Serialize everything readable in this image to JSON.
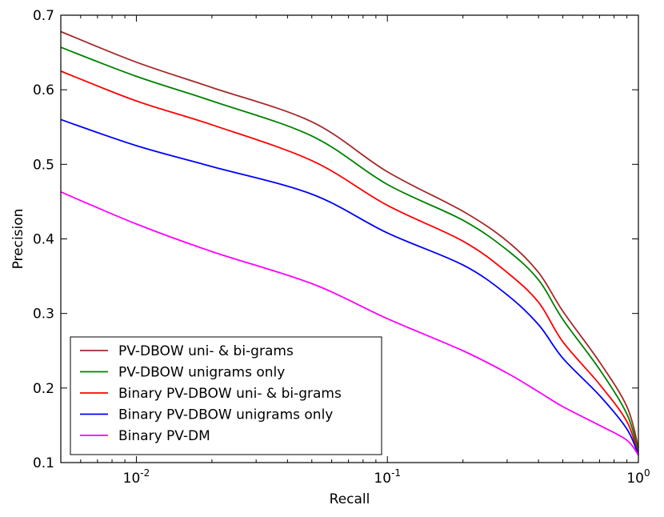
{
  "chart_data": {
    "type": "line",
    "title": "",
    "xlabel": "Recall",
    "ylabel": "Precision",
    "xscale": "log",
    "xlim": [
      0.005,
      1.0
    ],
    "ylim": [
      0.1,
      0.7
    ],
    "grid": false,
    "legend_position": "bottom-left",
    "x_ticks": [
      {
        "value": 0.01,
        "base": "10",
        "exp": "-2"
      },
      {
        "value": 0.1,
        "base": "10",
        "exp": "-1"
      },
      {
        "value": 1.0,
        "base": "10",
        "exp": "0"
      }
    ],
    "y_ticks": [
      {
        "value": 0.1,
        "label": "0.1"
      },
      {
        "value": 0.2,
        "label": "0.2"
      },
      {
        "value": 0.3,
        "label": "0.3"
      },
      {
        "value": 0.4,
        "label": "0.4"
      },
      {
        "value": 0.5,
        "label": "0.5"
      },
      {
        "value": 0.6,
        "label": "0.6"
      },
      {
        "value": 0.7,
        "label": "0.7"
      }
    ],
    "series": [
      {
        "name": "PV-DBOW uni- & bi-grams",
        "color": "#a52a2a",
        "points": [
          [
            0.005,
            0.678
          ],
          [
            0.01,
            0.637
          ],
          [
            0.02,
            0.603
          ],
          [
            0.05,
            0.557
          ],
          [
            0.1,
            0.49
          ],
          [
            0.2,
            0.437
          ],
          [
            0.3,
            0.397
          ],
          [
            0.4,
            0.355
          ],
          [
            0.5,
            0.303
          ],
          [
            0.7,
            0.235
          ],
          [
            0.9,
            0.175
          ],
          [
            1.0,
            0.12
          ]
        ]
      },
      {
        "name": "PV-DBOW unigrams only",
        "color": "#008000",
        "points": [
          [
            0.005,
            0.657
          ],
          [
            0.01,
            0.618
          ],
          [
            0.02,
            0.585
          ],
          [
            0.05,
            0.538
          ],
          [
            0.1,
            0.473
          ],
          [
            0.2,
            0.425
          ],
          [
            0.3,
            0.385
          ],
          [
            0.4,
            0.345
          ],
          [
            0.5,
            0.292
          ],
          [
            0.7,
            0.225
          ],
          [
            0.9,
            0.165
          ],
          [
            1.0,
            0.115
          ]
        ]
      },
      {
        "name": "Binary PV-DBOW uni- & bi-grams",
        "color": "#ff0000",
        "points": [
          [
            0.005,
            0.625
          ],
          [
            0.01,
            0.585
          ],
          [
            0.02,
            0.553
          ],
          [
            0.05,
            0.505
          ],
          [
            0.1,
            0.445
          ],
          [
            0.2,
            0.397
          ],
          [
            0.3,
            0.355
          ],
          [
            0.4,
            0.315
          ],
          [
            0.5,
            0.262
          ],
          [
            0.7,
            0.205
          ],
          [
            0.9,
            0.155
          ],
          [
            1.0,
            0.11
          ]
        ]
      },
      {
        "name": "Binary PV-DBOW unigrams only",
        "color": "#0000ff",
        "points": [
          [
            0.005,
            0.56
          ],
          [
            0.01,
            0.525
          ],
          [
            0.02,
            0.497
          ],
          [
            0.05,
            0.46
          ],
          [
            0.1,
            0.408
          ],
          [
            0.2,
            0.365
          ],
          [
            0.3,
            0.325
          ],
          [
            0.4,
            0.285
          ],
          [
            0.5,
            0.24
          ],
          [
            0.7,
            0.19
          ],
          [
            0.9,
            0.145
          ],
          [
            1.0,
            0.11
          ]
        ]
      },
      {
        "name": "Binary PV-DM",
        "color": "#ff00ff",
        "points": [
          [
            0.005,
            0.463
          ],
          [
            0.01,
            0.42
          ],
          [
            0.02,
            0.383
          ],
          [
            0.05,
            0.34
          ],
          [
            0.1,
            0.293
          ],
          [
            0.2,
            0.25
          ],
          [
            0.3,
            0.22
          ],
          [
            0.4,
            0.195
          ],
          [
            0.5,
            0.175
          ],
          [
            0.7,
            0.15
          ],
          [
            0.9,
            0.13
          ],
          [
            1.0,
            0.11
          ]
        ]
      }
    ]
  }
}
